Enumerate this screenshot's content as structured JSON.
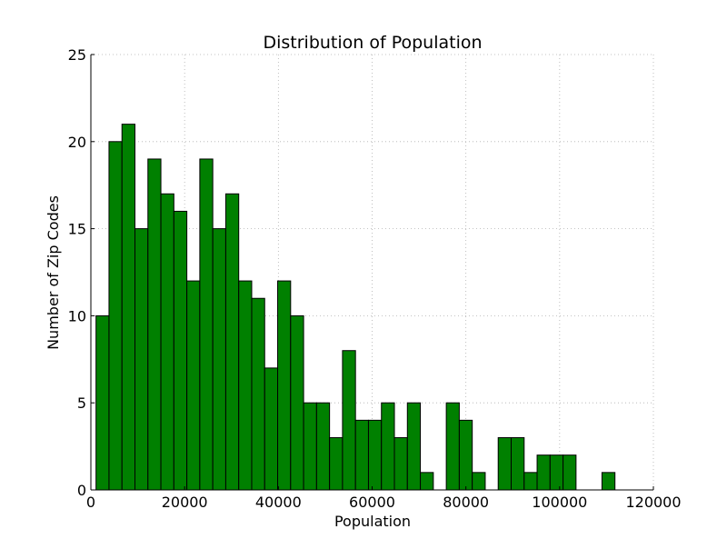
{
  "chart_data": {
    "type": "bar",
    "title": "Distribution of Population",
    "xlabel": "Population",
    "ylabel": "Number of Zip Codes",
    "xlim": [
      0,
      120000
    ],
    "ylim": [
      0,
      25
    ],
    "xticks": [
      0,
      20000,
      40000,
      60000,
      80000,
      100000,
      120000
    ],
    "xtick_labels": [
      "0",
      "20000",
      "40000",
      "60000",
      "80000",
      "100000",
      "120000"
    ],
    "yticks": [
      0,
      5,
      10,
      15,
      20,
      25
    ],
    "ytick_labels": [
      "0",
      "5",
      "10",
      "15",
      "20",
      "25"
    ],
    "grid": true,
    "bar_color": "#008000",
    "bar_edge_color": "#000000",
    "bins_start": 1100,
    "bins_end": 111800,
    "counts": [
      10,
      20,
      21,
      15,
      19,
      17,
      16,
      12,
      19,
      15,
      17,
      12,
      11,
      7,
      12,
      10,
      5,
      5,
      3,
      8,
      4,
      4,
      5,
      3,
      5,
      1,
      0,
      5,
      4,
      1,
      0,
      3,
      3,
      1,
      2,
      2,
      2,
      0,
      0,
      1
    ]
  }
}
